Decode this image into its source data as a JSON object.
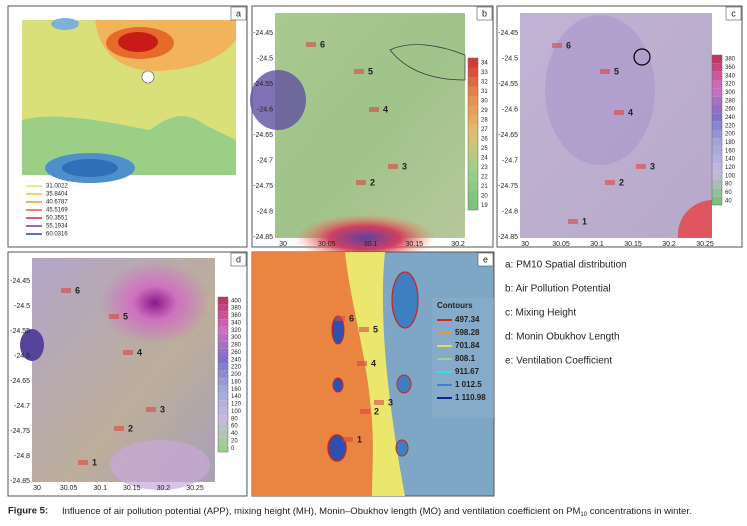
{
  "panels": [
    {
      "letter": "a",
      "legend": [
        "31.0022",
        "35.8404",
        "40.6787",
        "45.5169",
        "50.3551",
        "55.1934",
        "60.0316"
      ]
    },
    {
      "letter": "b",
      "yticks": [
        "-24.45",
        "-24.5",
        "-24.55",
        "-24.6",
        "-24.65",
        "-24.7",
        "-24.75",
        "-24.8",
        "-24.85"
      ],
      "xticks": [
        "30",
        "30.05",
        "30.1",
        "30.15",
        "30.2"
      ],
      "colorbar": [
        "34",
        "33",
        "32",
        "31",
        "30",
        "29",
        "28",
        "27",
        "26",
        "25",
        "24",
        "23",
        "22",
        "21",
        "20",
        "19"
      ],
      "sites": [
        "6",
        "5",
        "4",
        "3",
        "2"
      ]
    },
    {
      "letter": "c",
      "yticks": [
        "-24.45",
        "-24.5",
        "-24.55",
        "-24.6",
        "-24.65",
        "-24.7",
        "-24.75",
        "-24.8",
        "-24.85"
      ],
      "xticks": [
        "30",
        "30.05",
        "30.1",
        "30.15",
        "30.2",
        "30.25"
      ],
      "colorbar": [
        "380",
        "360",
        "340",
        "320",
        "300",
        "280",
        "260",
        "240",
        "220",
        "200",
        "180",
        "160",
        "140",
        "120",
        "100",
        "80",
        "60",
        "40"
      ],
      "sites": [
        "6",
        "5",
        "4",
        "3",
        "2",
        "1"
      ]
    },
    {
      "letter": "d",
      "yticks": [
        "-24.45",
        "-24.5",
        "-24.55",
        "-24.6",
        "-24.65",
        "-24.7",
        "-24.75",
        "-24.8",
        "-24.85"
      ],
      "xticks": [
        "30",
        "30.05",
        "30.1",
        "30.15",
        "30.2",
        "30.25"
      ],
      "colorbar": [
        "400",
        "380",
        "360",
        "340",
        "320",
        "300",
        "280",
        "260",
        "240",
        "220",
        "200",
        "180",
        "160",
        "140",
        "120",
        "100",
        "80",
        "60",
        "40",
        "20",
        "0"
      ],
      "sites": [
        "6",
        "5",
        "4",
        "3",
        "2",
        "1"
      ]
    },
    {
      "letter": "e",
      "legend_title": "Contours",
      "legend": [
        "497.34",
        "598.28",
        "701.84",
        "808.1",
        "911.67",
        "1 012.5",
        "1 110.98"
      ],
      "sites": [
        "6",
        "5",
        "4",
        "3",
        "2",
        "1"
      ]
    }
  ],
  "key": [
    "a: PM10 Spatial distribution",
    "b: Air Pollution Potential",
    "c: Mixing Height",
    "d: Monin Obukhov Length",
    "e: Ventilation Coefficient"
  ],
  "caption": {
    "label": "Figure 5:",
    "text": "Influence of air pollution potential (APP), mixing height (MH), Monin–Obukhov length (MO) and ventilation coefficient on PM",
    "subscript": "10",
    "tail": " concentrations in winter."
  }
}
